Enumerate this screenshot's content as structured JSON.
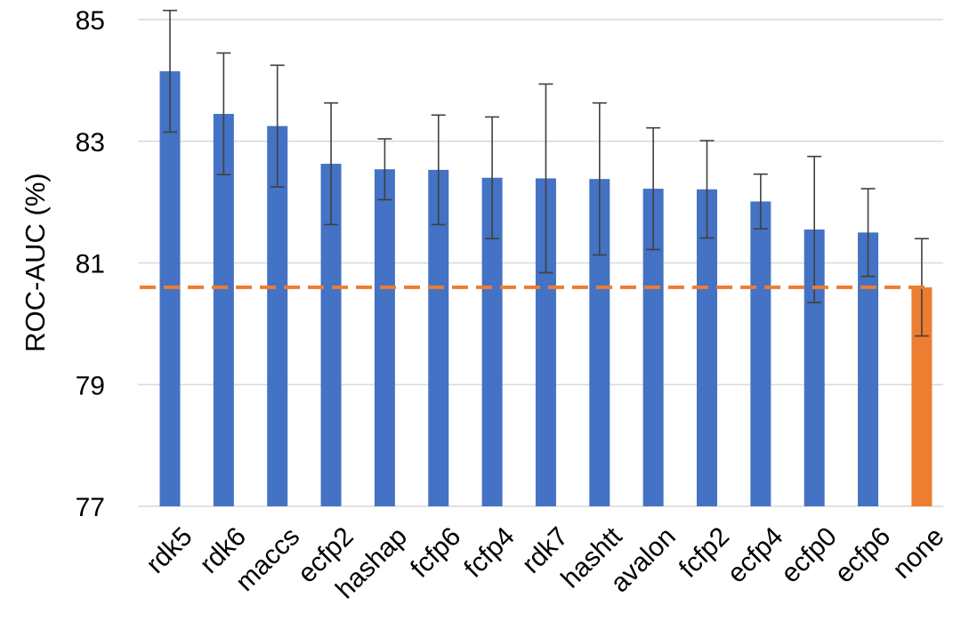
{
  "chart_data": {
    "type": "bar",
    "title": "",
    "xlabel": "",
    "ylabel": "ROC-AUC (%)",
    "ylim": [
      77,
      85
    ],
    "yticks": [
      77,
      79,
      81,
      83,
      85
    ],
    "grid": true,
    "categories": [
      "rdk5",
      "rdk6",
      "maccs",
      "ecfp2",
      "hashap",
      "fcfp6",
      "fcfp4",
      "rdk7",
      "hashtt",
      "avalon",
      "fcfp2",
      "ecfp4",
      "ecfp0",
      "ecfp6",
      "none"
    ],
    "values": [
      84.15,
      83.45,
      83.25,
      82.63,
      82.54,
      82.53,
      82.4,
      82.39,
      82.38,
      82.22,
      82.21,
      82.01,
      81.55,
      81.5,
      80.6
    ],
    "error": [
      1.0,
      1.0,
      1.0,
      1.0,
      0.5,
      0.9,
      1.0,
      1.55,
      1.25,
      1.0,
      0.8,
      0.45,
      1.2,
      0.72,
      0.8
    ],
    "bar_colors": [
      "#4472c4",
      "#4472c4",
      "#4472c4",
      "#4472c4",
      "#4472c4",
      "#4472c4",
      "#4472c4",
      "#4472c4",
      "#4472c4",
      "#4472c4",
      "#4472c4",
      "#4472c4",
      "#4472c4",
      "#4472c4",
      "#ed7d31"
    ],
    "reference_line": {
      "value": 80.6,
      "color": "#ed7d31",
      "style": "dashed"
    }
  }
}
